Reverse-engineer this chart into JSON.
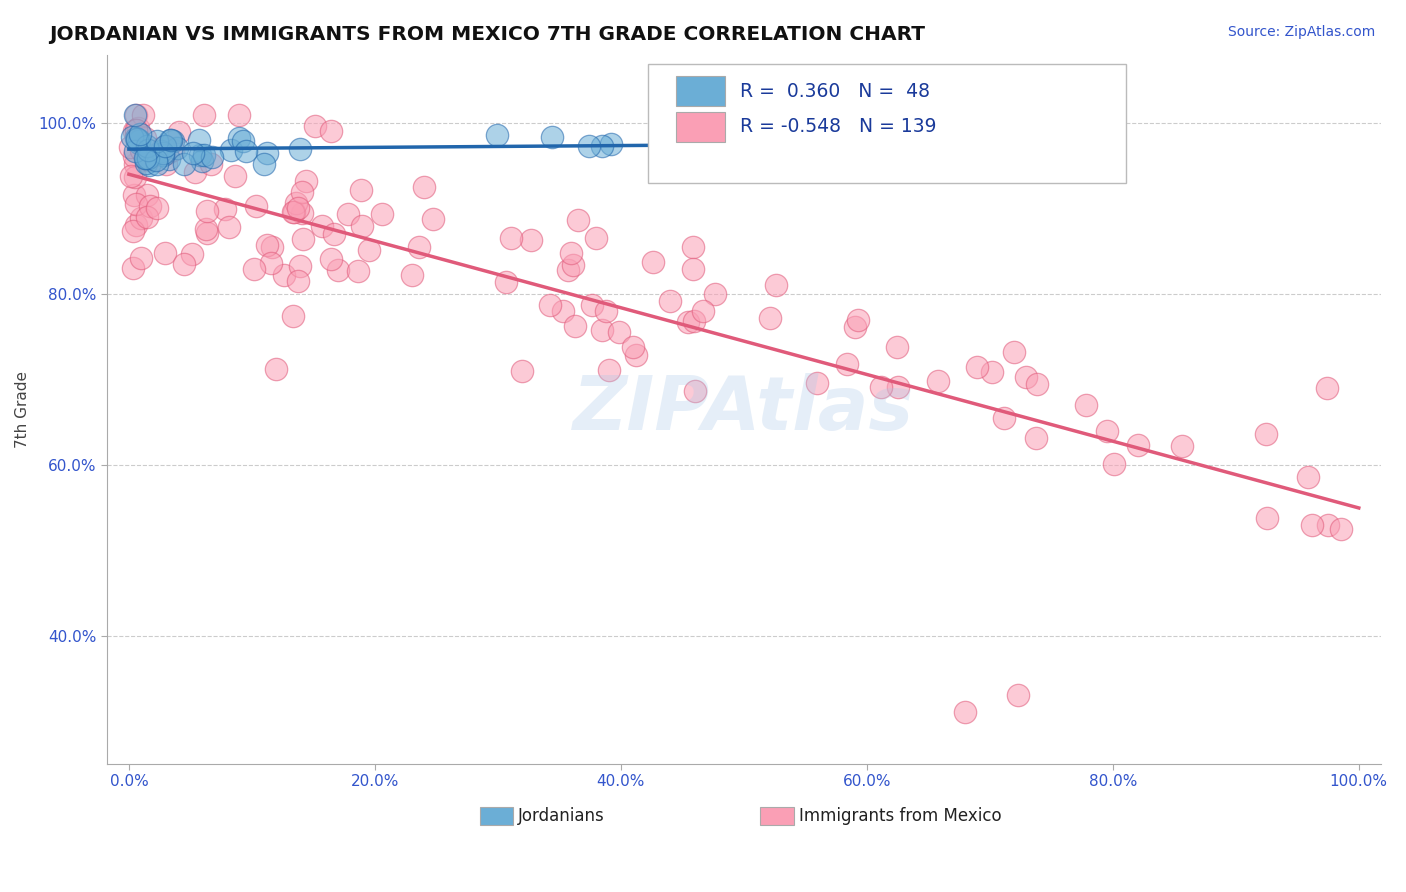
{
  "title": "JORDANIAN VS IMMIGRANTS FROM MEXICO 7TH GRADE CORRELATION CHART",
  "source": "Source: ZipAtlas.com",
  "ylabel": "7th Grade",
  "legend_label1": "Jordanians",
  "legend_label2": "Immigrants from Mexico",
  "R1": 0.36,
  "N1": 48,
  "R2": -0.548,
  "N2": 139,
  "color_blue": "#6baed6",
  "color_pink": "#fa9fb5",
  "line_blue": "#2166ac",
  "line_pink": "#e05a7a",
  "watermark": "ZIPAtlas",
  "bg_color": "#ffffff",
  "grid_color": "#cccccc"
}
